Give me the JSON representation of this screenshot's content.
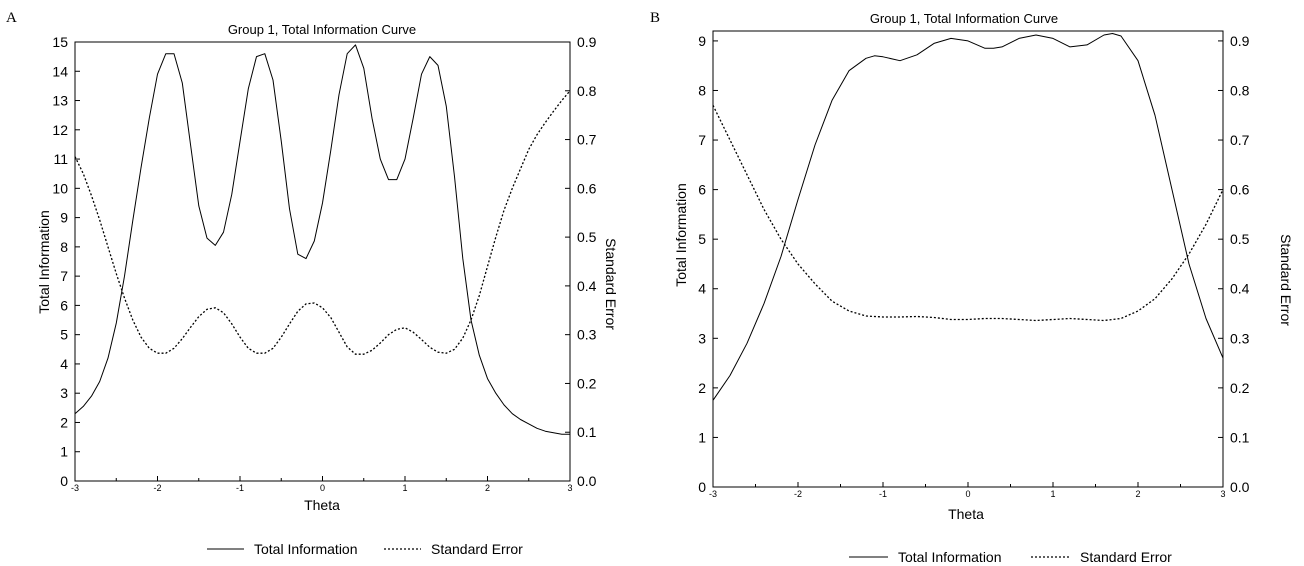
{
  "chart_data": [
    {
      "panel": "A",
      "type": "line",
      "title": "Group 1, Total Information Curve",
      "xlabel": "Theta",
      "ylabel_left": "Total Information",
      "ylabel_right": "Standard Error",
      "xlim": [
        -3,
        3
      ],
      "ylim_left": [
        0,
        15
      ],
      "ylim_right": [
        0.0,
        0.9
      ],
      "xticks": [
        "-3",
        "-2",
        "-1",
        "0",
        "1",
        "2",
        "3"
      ],
      "yticks_left": [
        "0",
        "1",
        "2",
        "3",
        "4",
        "5",
        "6",
        "7",
        "8",
        "9",
        "10",
        "11",
        "12",
        "13",
        "14",
        "15"
      ],
      "yticks_right": [
        "0.0",
        "0.1",
        "0.2",
        "0.3",
        "0.4",
        "0.5",
        "0.6",
        "0.7",
        "0.8",
        "0.9"
      ],
      "legend_position": "bottom",
      "series": [
        {
          "name": "Total Information",
          "axis": "left",
          "style": "solid",
          "x": [
            -3.0,
            -2.9,
            -2.8,
            -2.7,
            -2.6,
            -2.5,
            -2.4,
            -2.3,
            -2.2,
            -2.1,
            -2.0,
            -1.9,
            -1.8,
            -1.7,
            -1.6,
            -1.5,
            -1.4,
            -1.3,
            -1.2,
            -1.1,
            -1.0,
            -0.9,
            -0.8,
            -0.7,
            -0.6,
            -0.5,
            -0.4,
            -0.3,
            -0.2,
            -0.1,
            0.0,
            0.1,
            0.2,
            0.3,
            0.4,
            0.5,
            0.6,
            0.7,
            0.8,
            0.9,
            1.0,
            1.1,
            1.2,
            1.3,
            1.4,
            1.5,
            1.6,
            1.7,
            1.8,
            1.9,
            2.0,
            2.1,
            2.2,
            2.3,
            2.4,
            2.5,
            2.6,
            2.7,
            2.8,
            2.9,
            3.0
          ],
          "y": [
            2.3,
            2.55,
            2.9,
            3.4,
            4.2,
            5.4,
            7.0,
            8.9,
            10.7,
            12.4,
            13.9,
            14.6,
            14.6,
            13.6,
            11.5,
            9.4,
            8.3,
            8.05,
            8.5,
            9.8,
            11.6,
            13.4,
            14.5,
            14.6,
            13.7,
            11.6,
            9.3,
            7.75,
            7.6,
            8.2,
            9.5,
            11.3,
            13.2,
            14.6,
            14.9,
            14.1,
            12.4,
            11.0,
            10.3,
            10.3,
            11.0,
            12.4,
            13.9,
            14.5,
            14.2,
            12.8,
            10.4,
            7.6,
            5.5,
            4.3,
            3.5,
            3.0,
            2.6,
            2.3,
            2.1,
            1.95,
            1.8,
            1.7,
            1.65,
            1.6,
            1.6
          ]
        },
        {
          "name": "Standard Error",
          "axis": "right",
          "style": "dotted",
          "x": [
            -3.0,
            -2.9,
            -2.8,
            -2.7,
            -2.6,
            -2.5,
            -2.4,
            -2.3,
            -2.2,
            -2.1,
            -2.0,
            -1.9,
            -1.8,
            -1.7,
            -1.6,
            -1.5,
            -1.4,
            -1.3,
            -1.2,
            -1.1,
            -1.0,
            -0.9,
            -0.8,
            -0.7,
            -0.6,
            -0.5,
            -0.4,
            -0.3,
            -0.2,
            -0.1,
            0.0,
            0.1,
            0.2,
            0.3,
            0.4,
            0.5,
            0.6,
            0.7,
            0.8,
            0.9,
            1.0,
            1.1,
            1.2,
            1.3,
            1.4,
            1.5,
            1.6,
            1.7,
            1.8,
            1.9,
            2.0,
            2.1,
            2.2,
            2.3,
            2.4,
            2.5,
            2.6,
            2.7,
            2.8,
            2.9,
            3.0
          ],
          "y": [
            0.665,
            0.63,
            0.585,
            0.535,
            0.48,
            0.425,
            0.375,
            0.33,
            0.295,
            0.272,
            0.262,
            0.262,
            0.272,
            0.292,
            0.315,
            0.337,
            0.352,
            0.355,
            0.345,
            0.322,
            0.295,
            0.272,
            0.262,
            0.262,
            0.272,
            0.295,
            0.322,
            0.348,
            0.363,
            0.365,
            0.355,
            0.335,
            0.305,
            0.275,
            0.26,
            0.26,
            0.268,
            0.283,
            0.3,
            0.311,
            0.314,
            0.305,
            0.29,
            0.274,
            0.264,
            0.262,
            0.27,
            0.293,
            0.33,
            0.38,
            0.44,
            0.5,
            0.555,
            0.6,
            0.64,
            0.68,
            0.71,
            0.735,
            0.758,
            0.78,
            0.8
          ]
        }
      ]
    },
    {
      "panel": "B",
      "type": "line",
      "title": "Group 1, Total Information Curve",
      "xlabel": "Theta",
      "ylabel_left": "Total Information",
      "ylabel_right": "Standard Error",
      "xlim": [
        -3,
        3
      ],
      "ylim_left": [
        0,
        9.2
      ],
      "ylim_right": [
        0.0,
        0.92
      ],
      "xticks": [
        "-3",
        "-2",
        "-1",
        "0",
        "1",
        "2",
        "3"
      ],
      "yticks_left": [
        "0",
        "1",
        "2",
        "3",
        "4",
        "5",
        "6",
        "7",
        "8",
        "9"
      ],
      "yticks_right": [
        "0.0",
        "0.1",
        "0.2",
        "0.3",
        "0.4",
        "0.5",
        "0.6",
        "0.7",
        "0.8",
        "0.9"
      ],
      "legend_position": "bottom",
      "series": [
        {
          "name": "Total Information",
          "axis": "left",
          "style": "solid",
          "x": [
            -3.0,
            -2.8,
            -2.6,
            -2.4,
            -2.2,
            -2.0,
            -1.8,
            -1.6,
            -1.4,
            -1.2,
            -1.1,
            -1.0,
            -0.8,
            -0.6,
            -0.4,
            -0.2,
            0.0,
            0.2,
            0.3,
            0.4,
            0.6,
            0.8,
            1.0,
            1.2,
            1.4,
            1.6,
            1.7,
            1.8,
            2.0,
            2.2,
            2.4,
            2.6,
            2.8,
            3.0
          ],
          "y": [
            1.75,
            2.25,
            2.9,
            3.7,
            4.65,
            5.8,
            6.9,
            7.8,
            8.4,
            8.65,
            8.7,
            8.68,
            8.6,
            8.72,
            8.95,
            9.05,
            9.0,
            8.85,
            8.85,
            8.88,
            9.05,
            9.12,
            9.05,
            8.88,
            8.92,
            9.12,
            9.15,
            9.1,
            8.6,
            7.5,
            6.0,
            4.5,
            3.4,
            2.6
          ]
        },
        {
          "name": "Standard Error",
          "axis": "right",
          "style": "dotted",
          "x": [
            -3.0,
            -2.8,
            -2.6,
            -2.4,
            -2.2,
            -2.0,
            -1.8,
            -1.6,
            -1.4,
            -1.2,
            -1.0,
            -0.8,
            -0.6,
            -0.4,
            -0.2,
            0.0,
            0.2,
            0.4,
            0.6,
            0.8,
            1.0,
            1.2,
            1.4,
            1.6,
            1.8,
            2.0,
            2.2,
            2.4,
            2.6,
            2.8,
            3.0
          ],
          "y": [
            0.77,
            0.7,
            0.63,
            0.56,
            0.5,
            0.45,
            0.41,
            0.375,
            0.355,
            0.345,
            0.343,
            0.343,
            0.344,
            0.342,
            0.338,
            0.338,
            0.34,
            0.34,
            0.338,
            0.336,
            0.338,
            0.34,
            0.338,
            0.336,
            0.34,
            0.355,
            0.38,
            0.42,
            0.47,
            0.53,
            0.6
          ]
        }
      ]
    }
  ]
}
